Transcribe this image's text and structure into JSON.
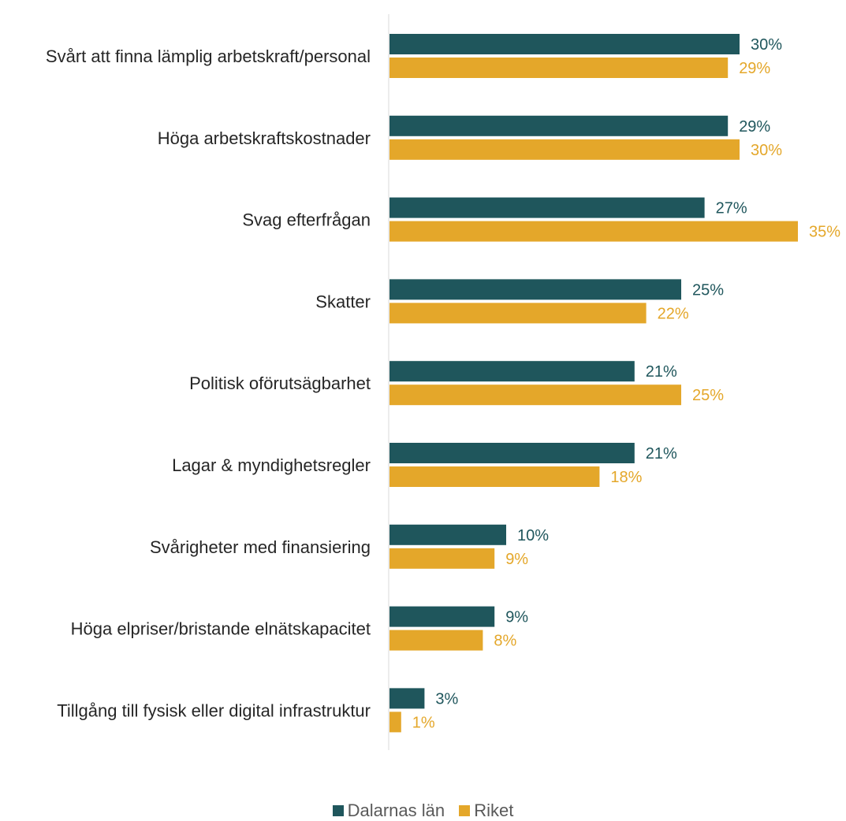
{
  "chart_data": {
    "type": "bar",
    "orientation": "horizontal",
    "categories": [
      "Svårt att finna lämplig arbetskraft/personal",
      "Höga arbetskraftskostnader",
      "Svag efterfrågan",
      "Skatter",
      "Politisk oförutsägbarhet",
      "Lagar & myndighetsregler",
      "Svårigheter med finansiering",
      "Höga elpriser/bristande elnätskapacitet",
      "Tillgång till fysisk eller digital infrastruktur"
    ],
    "series": [
      {
        "name": "Dalarnas län",
        "color": "#1f565c",
        "values": [
          30,
          29,
          27,
          25,
          21,
          21,
          10,
          9,
          3
        ],
        "labels": [
          "30%",
          "29%",
          "27%",
          "25%",
          "21%",
          "21%",
          "10%",
          "9%",
          "3%"
        ]
      },
      {
        "name": "Riket",
        "color": "#e4a72a",
        "values": [
          29,
          30,
          35,
          22,
          25,
          18,
          9,
          8,
          1
        ],
        "labels": [
          "29%",
          "30%",
          "35%",
          "22%",
          "25%",
          "18%",
          "9%",
          "8%",
          "1%"
        ]
      }
    ],
    "xlim": [
      0,
      35
    ],
    "legend_position": "bottom",
    "grid": false
  }
}
